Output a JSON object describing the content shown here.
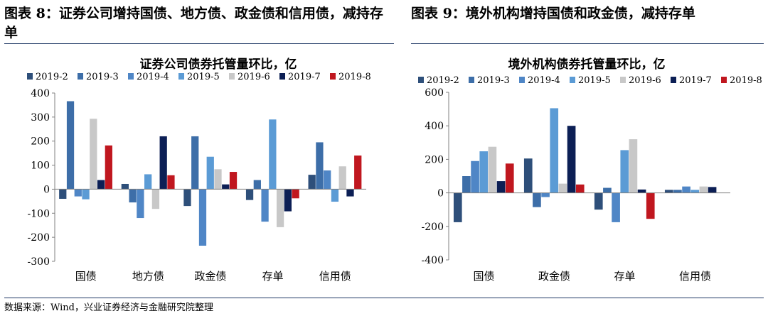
{
  "titles": {
    "left": "图表 8：证券公司增持国债、地方债、政金债和信用债，减持存单",
    "right": "图表 9：境外机构增持国债和政金债，减持存单"
  },
  "source": "数据来源：Wind，兴业证券经济与金融研究院整理",
  "colors": {
    "accent_line": "#1f3864",
    "series": [
      "#2e4f7a",
      "#3d6ea8",
      "#4f86c6",
      "#5b9bd5",
      "#c8c8c8",
      "#0c1f55",
      "#c0171f"
    ]
  },
  "chart_data": [
    {
      "type": "bar",
      "title": "证券公司债券托管量环比，亿",
      "categories": [
        "国债",
        "地方债",
        "政金债",
        "存单",
        "信用债"
      ],
      "ylim": [
        -300,
        400
      ],
      "yticks": [
        -300,
        -200,
        -100,
        0,
        100,
        200,
        300,
        400
      ],
      "legend_position": "top",
      "grid": false,
      "series": [
        {
          "name": "2019-2",
          "values": [
            -40,
            22,
            -70,
            -45,
            60
          ]
        },
        {
          "name": "2019-3",
          "values": [
            366,
            -55,
            220,
            38,
            195
          ]
        },
        {
          "name": "2019-4",
          "values": [
            -30,
            -120,
            -235,
            -135,
            78
          ]
        },
        {
          "name": "2019-5",
          "values": [
            -42,
            62,
            135,
            290,
            -52
          ]
        },
        {
          "name": "2019-6",
          "values": [
            293,
            -82,
            83,
            -158,
            95
          ]
        },
        {
          "name": "2019-7",
          "values": [
            38,
            220,
            20,
            -92,
            -30
          ]
        },
        {
          "name": "2019-8",
          "values": [
            182,
            58,
            72,
            -38,
            140
          ]
        }
      ]
    },
    {
      "type": "bar",
      "title": "境外机构债券托管量环比，亿",
      "categories": [
        "国债",
        "政金债",
        "存单",
        "信用债"
      ],
      "ylim": [
        -400,
        600
      ],
      "yticks": [
        -400,
        -200,
        0,
        200,
        400,
        600
      ],
      "legend_position": "top",
      "grid": false,
      "series": [
        {
          "name": "2019-2",
          "values": [
            -175,
            205,
            -100,
            18
          ]
        },
        {
          "name": "2019-3",
          "values": [
            100,
            -85,
            30,
            18
          ]
        },
        {
          "name": "2019-4",
          "values": [
            190,
            -25,
            -175,
            38
          ]
        },
        {
          "name": "2019-5",
          "values": [
            248,
            505,
            255,
            18
          ]
        },
        {
          "name": "2019-6",
          "values": [
            275,
            55,
            320,
            38
          ]
        },
        {
          "name": "2019-7",
          "values": [
            70,
            400,
            20,
            35
          ]
        },
        {
          "name": "2019-8",
          "values": [
            175,
            50,
            -155,
            0
          ]
        }
      ]
    }
  ]
}
